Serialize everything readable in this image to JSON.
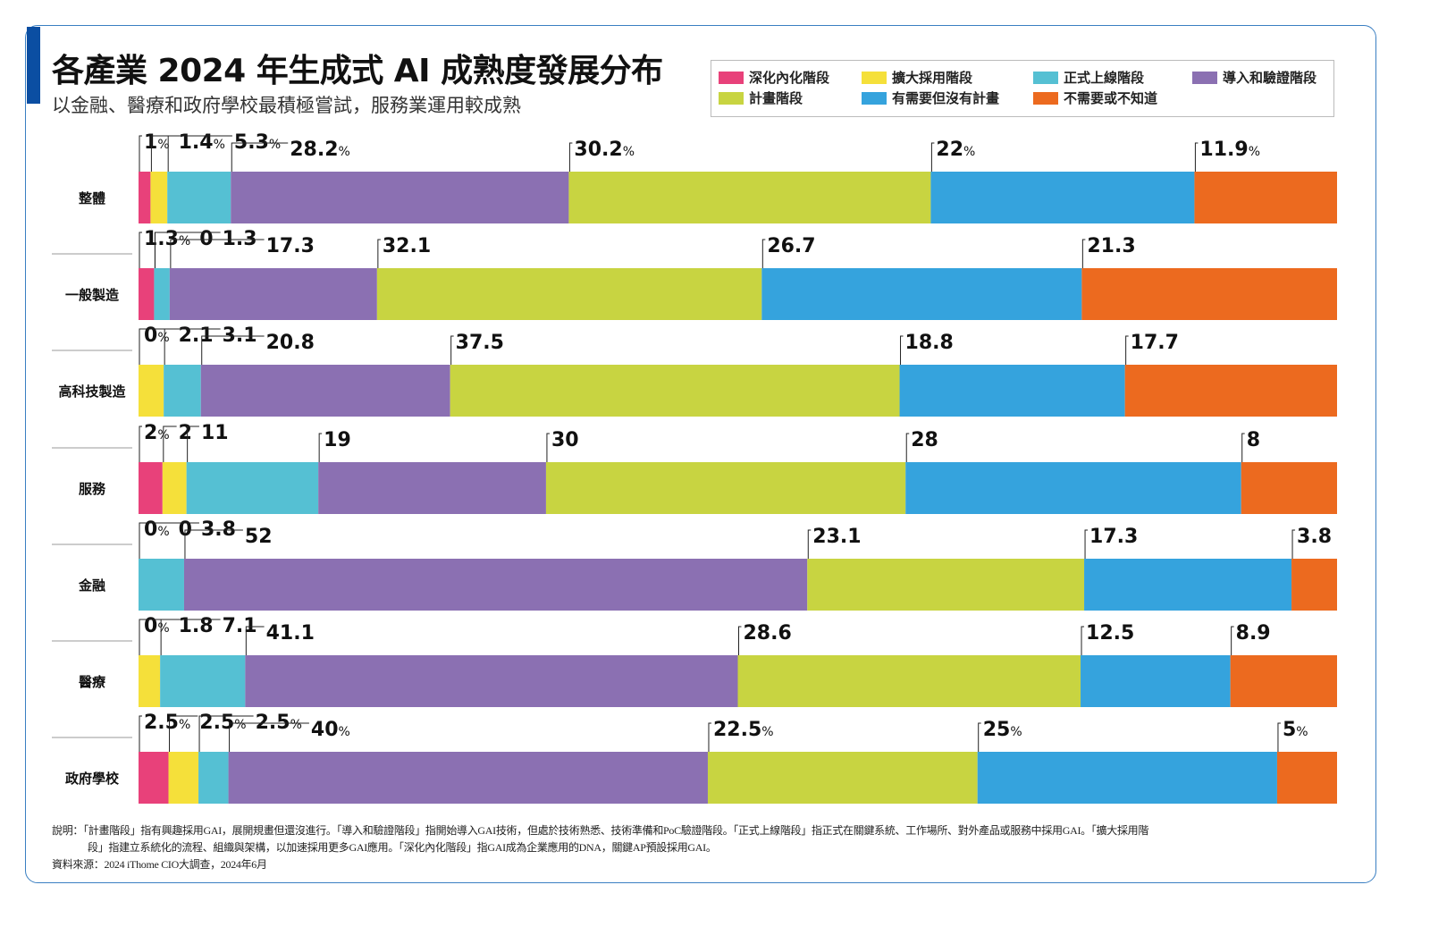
{
  "title": "各產業 2024 年生成式 AI 成熟度發展分布",
  "subtitle": "以金融、醫療和政府學校最積極嘗試，服務業運用較成熟",
  "note_line1": "說明：「計畫階段」指有興趣採用GAI，展開規畫但還沒進行。「導入和驗證階段」指開始導入GAI技術，但處於技術熟悉、技術準備和PoC驗證階段。「正式上線階段」指正式在關鍵系統、工作場所、對外產品或服務中採用GAI。「擴大採用階",
  "note_line2": "段」指建立系統化的流程、組織與架構，以加速採用更多GAI應用。「深化內化階段」指GAI成為企業應用的DNA，關鍵AP預設採用GAI。",
  "source": "資料來源：2024 iThome CIO大調查，2024年6月",
  "watermark": "iThome",
  "chart_data": {
    "type": "bar",
    "orientation": "horizontal",
    "stacked": true,
    "unit": "%",
    "legend_position": "top-right",
    "grid": false,
    "categories": [
      "整體",
      "一般製造",
      "高科技製造",
      "服務",
      "金融",
      "醫療",
      "政府學校"
    ],
    "series": [
      {
        "name": "深化內化階段",
        "color": "#e8417a",
        "values": [
          1,
          1.3,
          0,
          2,
          0,
          0,
          2.5
        ]
      },
      {
        "name": "擴大採用階段",
        "color": "#f5e03a",
        "values": [
          1.4,
          0,
          2.1,
          2,
          0,
          1.8,
          2.5
        ]
      },
      {
        "name": "正式上線階段",
        "color": "#55c0d3",
        "values": [
          5.3,
          1.3,
          3.1,
          11,
          3.8,
          7.1,
          2.5
        ]
      },
      {
        "name": "導入和驗證階段",
        "color": "#8b70b2",
        "values": [
          28.2,
          17.3,
          20.8,
          19,
          52,
          41.1,
          40
        ]
      },
      {
        "name": "計畫階段",
        "color": "#c8d441",
        "values": [
          30.2,
          32.1,
          37.5,
          30,
          23.1,
          28.6,
          22.5
        ]
      },
      {
        "name": "有需要但沒有計畫",
        "color": "#35a3dd",
        "values": [
          22,
          26.7,
          18.8,
          28,
          17.3,
          12.5,
          25
        ]
      },
      {
        "name": "不需要或不知道",
        "color": "#ec6a1f",
        "values": [
          11.9,
          21.3,
          17.7,
          8,
          3.8,
          8.9,
          5
        ]
      }
    ],
    "data_labels": [
      [
        "1%",
        "1.4%",
        "5.3%",
        "28.2%",
        "30.2%",
        "22%",
        "11.9%"
      ],
      [
        "1.3%",
        "0",
        "1.3",
        "17.3",
        "32.1",
        "26.7",
        "21.3"
      ],
      [
        "0%",
        "2.1",
        "3.1",
        "20.8",
        "37.5",
        "18.8",
        "17.7"
      ],
      [
        "2%",
        "2",
        "11",
        "19",
        "30",
        "28",
        "8"
      ],
      [
        "0%",
        "0",
        "3.8",
        "52",
        "23.1",
        "17.3",
        "3.8"
      ],
      [
        "0%",
        "1.8",
        "7.1",
        "41.1",
        "28.6",
        "12.5",
        "8.9"
      ],
      [
        "2.5%",
        "2.5%",
        "2.5%",
        "40%",
        "22.5%",
        "25%",
        "5%"
      ]
    ]
  }
}
